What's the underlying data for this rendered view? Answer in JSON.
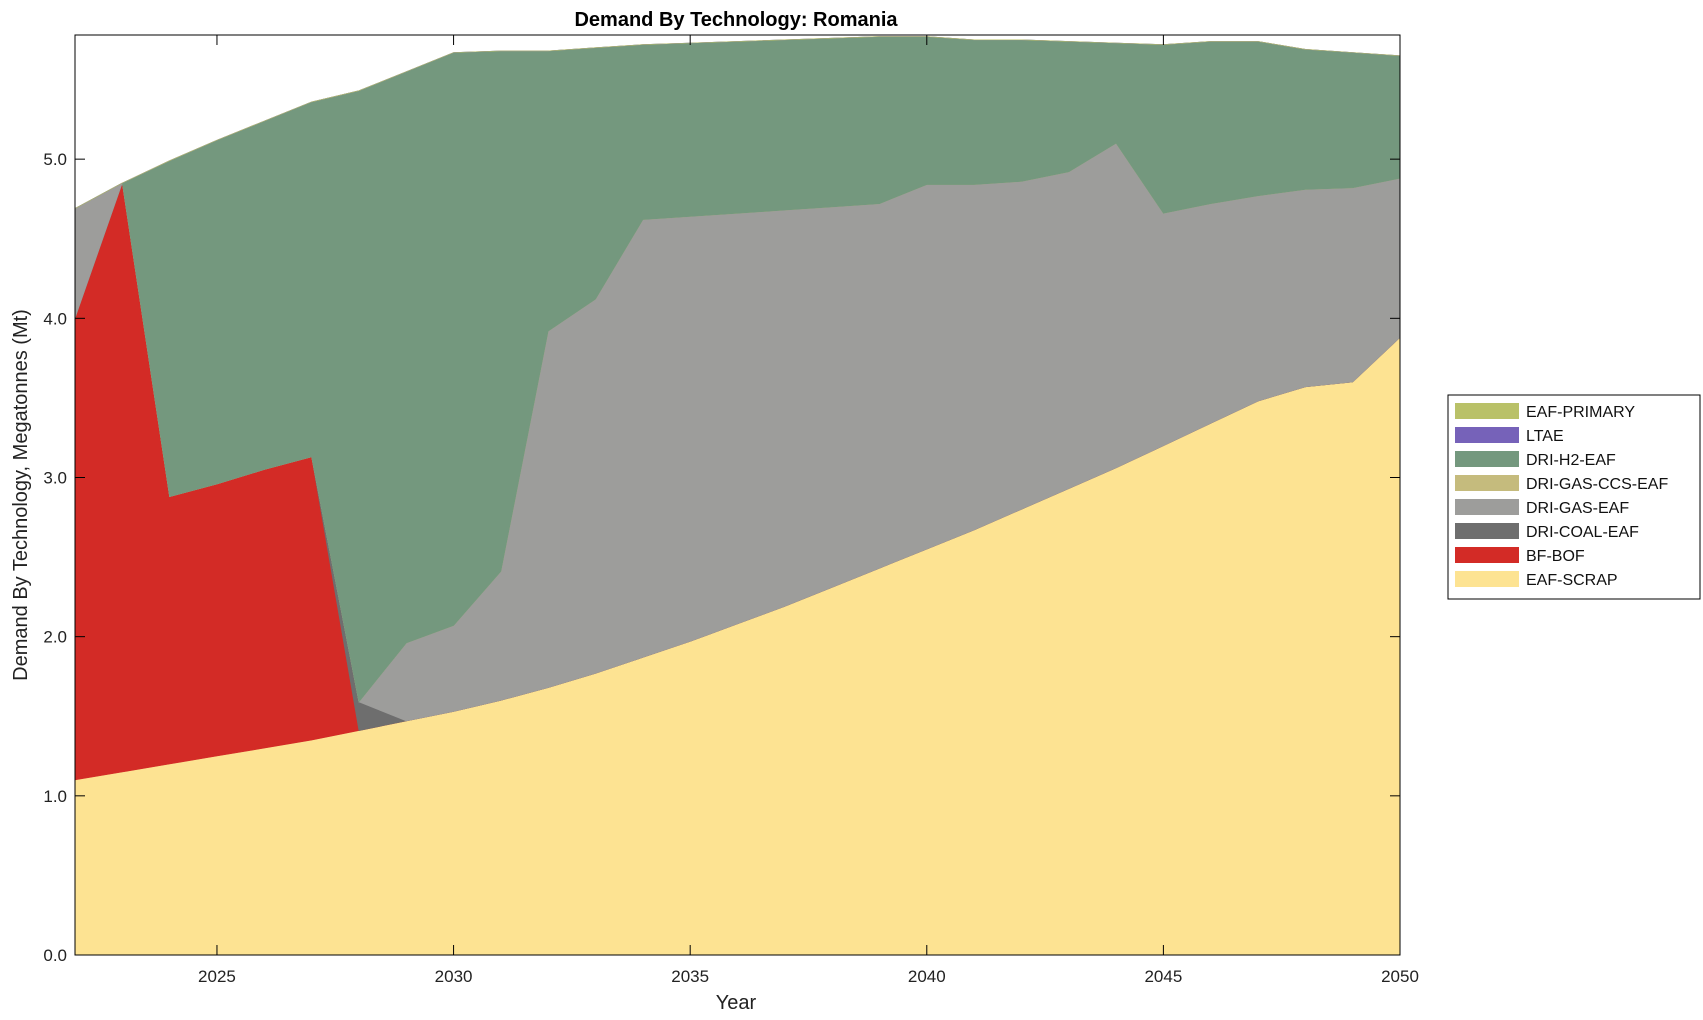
{
  "chart_data": {
    "type": "area",
    "stacked": true,
    "title": "Demand By Technology: Romania",
    "xlabel": "Year",
    "ylabel": "Demand By Technology, Megatonnes (Mt)",
    "xlim": [
      2022,
      2050
    ],
    "ylim": [
      0,
      5.78
    ],
    "xticks": [
      2025,
      2030,
      2035,
      2040,
      2045,
      2050
    ],
    "yticks": [
      0.0,
      1.0,
      2.0,
      3.0,
      4.0,
      5.0
    ],
    "ytick_labels": [
      "0.0",
      "1.0",
      "2.0",
      "3.0",
      "4.0",
      "5.0"
    ],
    "grid": false,
    "legend_position": "right",
    "x": [
      2022,
      2023,
      2024,
      2025,
      2026,
      2027,
      2028,
      2029,
      2030,
      2031,
      2032,
      2033,
      2034,
      2035,
      2036,
      2037,
      2038,
      2039,
      2040,
      2041,
      2042,
      2043,
      2044,
      2045,
      2046,
      2047,
      2048,
      2049,
      2050
    ],
    "series": [
      {
        "name": "EAF-SCRAP",
        "color": "#fde392",
        "values": [
          1.1,
          1.15,
          1.2,
          1.25,
          1.3,
          1.35,
          1.41,
          1.47,
          1.53,
          1.6,
          1.68,
          1.77,
          1.87,
          1.97,
          2.08,
          2.19,
          2.31,
          2.43,
          2.55,
          2.67,
          2.8,
          2.93,
          3.06,
          3.2,
          3.34,
          3.48,
          3.57,
          3.6,
          3.88
        ]
      },
      {
        "name": "BF-BOF",
        "color": "#d32b26",
        "values": [
          2.9,
          3.7,
          1.68,
          1.71,
          1.75,
          1.78,
          0.0,
          0.0,
          0.0,
          0.0,
          0.0,
          0.0,
          0.0,
          0.0,
          0.0,
          0.0,
          0.0,
          0.0,
          0.0,
          0.0,
          0.0,
          0.0,
          0.0,
          0.0,
          0.0,
          0.0,
          0.0,
          0.0,
          0.0
        ]
      },
      {
        "name": "DRI-COAL-EAF",
        "color": "#6e6e6e",
        "values": [
          0.0,
          0.0,
          0.0,
          0.0,
          0.0,
          0.0,
          0.18,
          0.0,
          0.0,
          0.0,
          0.0,
          0.0,
          0.0,
          0.0,
          0.0,
          0.0,
          0.0,
          0.0,
          0.0,
          0.0,
          0.0,
          0.0,
          0.0,
          0.0,
          0.0,
          0.0,
          0.0,
          0.0,
          0.0
        ]
      },
      {
        "name": "DRI-GAS-EAF",
        "color": "#9d9d9b",
        "values": [
          0.69,
          0.0,
          0.0,
          0.0,
          0.0,
          0.0,
          0.0,
          0.49,
          0.54,
          0.81,
          2.24,
          2.35,
          2.75,
          2.67,
          2.58,
          2.49,
          2.39,
          2.29,
          2.29,
          2.17,
          2.06,
          1.99,
          2.04,
          1.46,
          1.38,
          1.29,
          1.24,
          1.22,
          1.0
        ]
      },
      {
        "name": "DRI-GAS-CCS-EAF",
        "color": "#c5bb7d",
        "values": [
          0,
          0,
          0,
          0,
          0,
          0,
          0,
          0,
          0,
          0,
          0,
          0,
          0,
          0,
          0,
          0,
          0,
          0,
          0,
          0,
          0,
          0,
          0,
          0,
          0,
          0,
          0,
          0,
          0
        ]
      },
      {
        "name": "DRI-H2-EAF",
        "color": "#74987e",
        "values": [
          0.0,
          0.0,
          2.11,
          2.16,
          2.19,
          2.23,
          3.84,
          3.59,
          3.6,
          3.27,
          1.76,
          1.58,
          1.1,
          1.09,
          1.08,
          1.07,
          1.06,
          1.05,
          0.93,
          0.91,
          0.89,
          0.82,
          0.63,
          1.06,
          1.02,
          0.97,
          0.88,
          0.85,
          0.77
        ]
      },
      {
        "name": "LTAE",
        "color": "#7662b9",
        "values": [
          0,
          0,
          0,
          0,
          0,
          0,
          0,
          0,
          0,
          0,
          0,
          0,
          0,
          0,
          0,
          0,
          0,
          0,
          0,
          0,
          0,
          0,
          0,
          0,
          0,
          0,
          0,
          0,
          0
        ]
      },
      {
        "name": "EAF-PRIMARY",
        "color": "#b9c168",
        "values": [
          0,
          0,
          0,
          0,
          0,
          0,
          0,
          0,
          0,
          0,
          0,
          0,
          0,
          0,
          0,
          0,
          0,
          0,
          0,
          0,
          0,
          0,
          0,
          0,
          0,
          0,
          0,
          0,
          0
        ]
      }
    ],
    "legend_order": [
      "EAF-PRIMARY",
      "LTAE",
      "DRI-H2-EAF",
      "DRI-GAS-CCS-EAF",
      "DRI-GAS-EAF",
      "DRI-COAL-EAF",
      "BF-BOF",
      "EAF-SCRAP"
    ]
  }
}
